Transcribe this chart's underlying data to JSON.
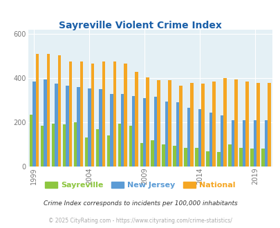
{
  "title": "Sayreville Violent Crime Index",
  "subtitle": "Crime Index corresponds to incidents per 100,000 inhabitants",
  "footer": "© 2025 CityRating.com - https://www.cityrating.com/crime-statistics/",
  "years": [
    1999,
    2000,
    2001,
    2002,
    2003,
    2004,
    2005,
    2006,
    2007,
    2008,
    2009,
    2010,
    2011,
    2012,
    2013,
    2014,
    2015,
    2016,
    2017,
    2018,
    2019,
    2020
  ],
  "sayreville": [
    235,
    185,
    195,
    190,
    200,
    130,
    170,
    140,
    195,
    185,
    105,
    120,
    100,
    95,
    85,
    85,
    70,
    65,
    100,
    85,
    80,
    80
  ],
  "new_jersey": [
    385,
    395,
    375,
    365,
    360,
    355,
    350,
    330,
    330,
    320,
    310,
    315,
    295,
    290,
    265,
    260,
    245,
    230,
    210,
    210,
    210,
    210
  ],
  "national": [
    510,
    510,
    505,
    475,
    475,
    465,
    475,
    475,
    465,
    430,
    405,
    390,
    390,
    365,
    380,
    375,
    385,
    400,
    395,
    385,
    380,
    380
  ],
  "color_sayreville": "#8dc63f",
  "color_nj": "#5b9bd5",
  "color_national": "#f5a623",
  "bg_color": "#e4f0f5",
  "title_color": "#1a5fa8",
  "subtitle_color": "#333333",
  "footer_color": "#aaaaaa",
  "tick_color": "#777777",
  "ylim": [
    0,
    620
  ],
  "yticks": [
    0,
    200,
    400,
    600
  ],
  "bar_width": 0.28,
  "tick_label_years": [
    1999,
    2004,
    2009,
    2014,
    2019
  ]
}
